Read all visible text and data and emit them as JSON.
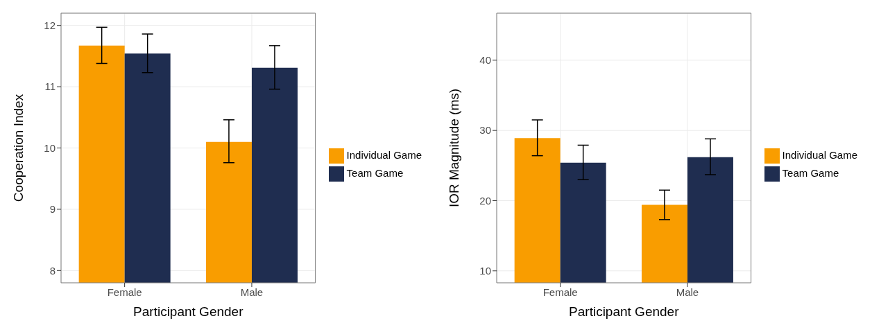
{
  "chart_data": [
    {
      "type": "bar",
      "categories": [
        "Female",
        "Male"
      ],
      "xlabel": "Participant Gender",
      "ylabel": "Cooperation Index",
      "ylim": [
        7.8,
        12.2
      ],
      "yticks": [
        8,
        9,
        10,
        11,
        12
      ],
      "grid": true,
      "legend": "right",
      "series": [
        {
          "name": "Individual Game",
          "color": "#f99d00",
          "values": [
            11.67,
            10.1
          ],
          "errors": [
            [
              11.38,
              11.97
            ],
            [
              9.76,
              10.46
            ]
          ]
        },
        {
          "name": "Team Game",
          "color": "#1f2d50",
          "values": [
            11.54,
            11.31
          ],
          "errors": [
            [
              11.23,
              11.86
            ],
            [
              10.96,
              11.67
            ]
          ]
        }
      ]
    },
    {
      "type": "bar",
      "categories": [
        "Female",
        "Male"
      ],
      "xlabel": "Participant Gender",
      "ylabel": "IOR Magnitude (ms)",
      "ylim": [
        8.3,
        46.7
      ],
      "yticks": [
        10,
        20,
        30,
        40
      ],
      "grid": true,
      "legend": "right",
      "series": [
        {
          "name": "Individual Game",
          "color": "#f99d00",
          "values": [
            28.9,
            19.4
          ],
          "errors": [
            [
              26.4,
              31.5
            ],
            [
              17.3,
              21.5
            ]
          ]
        },
        {
          "name": "Team Game",
          "color": "#1f2d50",
          "values": [
            25.4,
            26.2
          ],
          "errors": [
            [
              23.0,
              27.9
            ],
            [
              23.7,
              28.8
            ]
          ]
        }
      ]
    }
  ]
}
